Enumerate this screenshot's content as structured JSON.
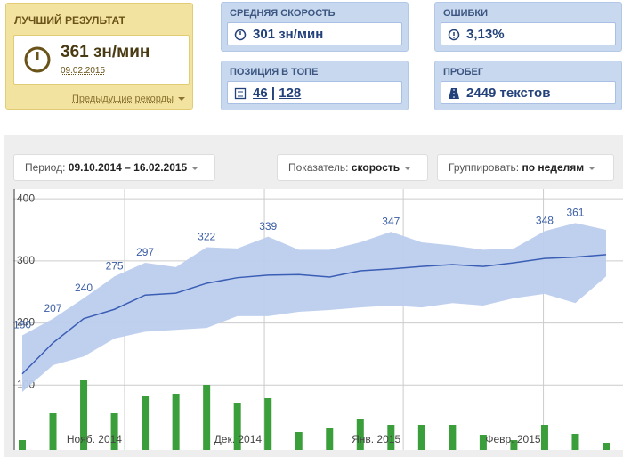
{
  "cards": {
    "best": {
      "title": "ЛУЧШИЙ РЕЗУЛЬТАТ",
      "value": "361 зн/мин",
      "date": "09.02.2015",
      "link": "Предыдущие рекорды"
    },
    "avg": {
      "title": "СРЕДНЯЯ СКОРОСТЬ",
      "value": "301 зн/мин"
    },
    "errors": {
      "title": "ОШИБКИ",
      "value": "3,13%"
    },
    "rank": {
      "title": "ПОЗИЦИЯ В ТОПЕ",
      "position": "46",
      "separator": "|",
      "total": "128"
    },
    "mileage": {
      "title": "ПРОБЕГ",
      "value": "2449 текстов"
    }
  },
  "controls": {
    "period": {
      "label": "Период:",
      "value": "09.10.2014 – 16.02.2015"
    },
    "metric": {
      "label": "Показатель:",
      "value": "скорость"
    },
    "group": {
      "label": "Группировать:",
      "value": "по неделям"
    }
  },
  "chart_data": {
    "type": "line",
    "categories": [
      null,
      null,
      null,
      null,
      null,
      null,
      null,
      null,
      null,
      null,
      null,
      null,
      null,
      null,
      null,
      null,
      null,
      null,
      null,
      null
    ],
    "xticks": [
      {
        "value": 3.33,
        "label": "Нояб. 2014"
      },
      {
        "value": 7.88,
        "label": "Дек. 2014"
      },
      {
        "value": 12.4,
        "label": "Янв. 2015"
      },
      {
        "value": 16.96,
        "label": "Февр. 2015"
      }
    ],
    "ylim": [
      0,
      416
    ],
    "yticks": [
      100,
      200,
      300,
      400
    ],
    "y2lim": [
      0,
      290
    ],
    "grid": true,
    "series": [
      {
        "name": "max",
        "color": "#bccdee",
        "values": [
          180,
          207,
          240,
          275,
          297,
          290,
          322,
          320,
          339,
          318,
          318,
          330,
          347,
          330,
          325,
          318,
          320,
          348,
          361,
          350
        ],
        "value_labels": [
          "180",
          "207",
          "240",
          "275",
          "297",
          null,
          "322",
          null,
          "339",
          null,
          null,
          null,
          "347",
          null,
          null,
          null,
          null,
          "348",
          "361",
          null
        ]
      },
      {
        "name": "min",
        "color": "#bccdee",
        "values": [
          89,
          132,
          146,
          175,
          186,
          189,
          192,
          211,
          211,
          218,
          221,
          225,
          228,
          225,
          232,
          228,
          240,
          247,
          232,
          275
        ]
      },
      {
        "name": "mean",
        "color": "#3b5eb5",
        "values": [
          118,
          168,
          207,
          222,
          245,
          248,
          264,
          273,
          277,
          278,
          274,
          284,
          287,
          291,
          294,
          291,
          297,
          304,
          306,
          310
        ]
      },
      {
        "name": "texts",
        "color": "#3a9e3a",
        "axis": "y2",
        "values": [
          8,
          38,
          75,
          38,
          57,
          60,
          70,
          50,
          55,
          17,
          22,
          32,
          25,
          25,
          25,
          14,
          8,
          25,
          15,
          5
        ]
      }
    ]
  }
}
